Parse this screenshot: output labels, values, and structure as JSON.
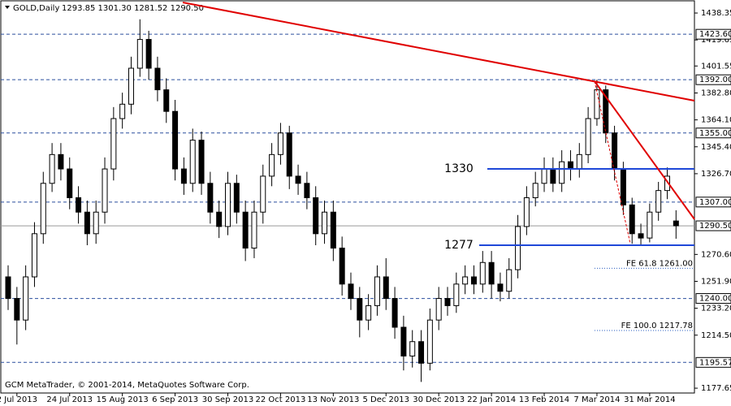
{
  "chart_data": {
    "type": "candlestick",
    "title": "GOLD,Daily",
    "header_values": "1293.85 1301.30 1281.52 1290.50",
    "footer": "GCM MetaTrader, © 2001-2014, MetaQuotes Software Corp.",
    "categories": [
      null,
      "2 Jul 2013",
      null,
      null,
      null,
      null,
      null,
      "24 Jul 2013",
      null,
      null,
      null,
      null,
      null,
      "15 Aug 2013",
      null,
      null,
      null,
      null,
      null,
      "6 Sep 2013",
      null,
      null,
      null,
      null,
      null,
      "30 Sep 2013",
      null,
      null,
      null,
      null,
      null,
      "22 Oct 2013",
      null,
      null,
      null,
      null,
      null,
      "13 Nov 2013",
      null,
      null,
      null,
      null,
      null,
      "5 Dec 2013",
      null,
      null,
      null,
      null,
      null,
      "30 Dec 2013",
      null,
      null,
      null,
      null,
      null,
      "22 Jan 2014",
      null,
      null,
      null,
      null,
      null,
      "13 Feb 2014",
      null,
      null,
      null,
      null,
      null,
      "7 Mar 2014",
      null,
      null,
      null,
      null,
      null,
      "31 Mar 2014",
      null,
      null,
      null
    ],
    "open": [
      1255,
      1240,
      1225,
      1255,
      1285,
      1320,
      1340,
      1330,
      1310,
      1300,
      1285,
      1300,
      1330,
      1365,
      1375,
      1400,
      1420,
      1400,
      1385,
      1370,
      1330,
      1320,
      1350,
      1320,
      1300,
      1290,
      1320,
      1300,
      1275,
      1300,
      1325,
      1340,
      1355,
      1325,
      1320,
      1310,
      1285,
      1300,
      1275,
      1250,
      1240,
      1225,
      1235,
      1255,
      1240,
      1220,
      1200,
      1210,
      1195,
      1225,
      1240,
      1235,
      1250,
      1255,
      1250,
      1265,
      1250,
      1245,
      1260,
      1290,
      1310,
      1320,
      1330,
      1320,
      1335,
      1330,
      1340,
      1365,
      1385,
      1355,
      1330,
      1305,
      1285,
      1282,
      1300,
      1315,
      1293.85
    ],
    "high": [
      1263,
      1248,
      1263,
      1293,
      1328,
      1348,
      1348,
      1338,
      1318,
      1308,
      1308,
      1338,
      1373,
      1383,
      1408,
      1434,
      1426,
      1408,
      1393,
      1378,
      1338,
      1358,
      1356,
      1328,
      1308,
      1328,
      1326,
      1308,
      1308,
      1333,
      1348,
      1362,
      1360,
      1333,
      1328,
      1318,
      1308,
      1308,
      1283,
      1258,
      1248,
      1243,
      1263,
      1268,
      1248,
      1228,
      1218,
      1218,
      1233,
      1248,
      1248,
      1258,
      1263,
      1263,
      1273,
      1273,
      1258,
      1268,
      1298,
      1318,
      1328,
      1338,
      1338,
      1343,
      1343,
      1348,
      1373,
      1392,
      1388,
      1360,
      1335,
      1310,
      1292,
      1306,
      1321,
      1331,
      1301.3
    ],
    "low": [
      1232,
      1208,
      1218,
      1248,
      1278,
      1314,
      1322,
      1302,
      1292,
      1277,
      1278,
      1292,
      1322,
      1358,
      1368,
      1394,
      1392,
      1377,
      1362,
      1322,
      1312,
      1314,
      1312,
      1292,
      1282,
      1284,
      1292,
      1266,
      1268,
      1292,
      1318,
      1333,
      1316,
      1312,
      1302,
      1277,
      1278,
      1266,
      1242,
      1232,
      1213,
      1218,
      1228,
      1232,
      1212,
      1190,
      1192,
      1182,
      1190,
      1218,
      1228,
      1230,
      1243,
      1243,
      1244,
      1240,
      1238,
      1240,
      1254,
      1284,
      1304,
      1314,
      1314,
      1314,
      1322,
      1324,
      1334,
      1360,
      1348,
      1322,
      1298,
      1278,
      1277,
      1279,
      1294,
      1309,
      1281.52
    ],
    "close": [
      1240,
      1225,
      1255,
      1285,
      1320,
      1340,
      1330,
      1310,
      1300,
      1285,
      1300,
      1330,
      1365,
      1375,
      1400,
      1420,
      1400,
      1385,
      1370,
      1330,
      1320,
      1350,
      1320,
      1300,
      1290,
      1320,
      1300,
      1275,
      1300,
      1325,
      1340,
      1355,
      1325,
      1320,
      1310,
      1285,
      1300,
      1275,
      1250,
      1240,
      1225,
      1235,
      1255,
      1240,
      1220,
      1200,
      1210,
      1195,
      1225,
      1240,
      1235,
      1250,
      1255,
      1250,
      1265,
      1250,
      1245,
      1260,
      1290,
      1310,
      1320,
      1330,
      1320,
      1335,
      1330,
      1340,
      1365,
      1385,
      1355,
      1330,
      1305,
      1285,
      1282,
      1300,
      1315,
      1325,
      1290.5
    ],
    "ylim": [
      1174.3,
      1447.4
    ],
    "yticks": [
      {
        "value": 1438.35,
        "label": "1438.35"
      },
      {
        "value": 1419.65,
        "label": "1419.65"
      },
      {
        "value": 1401.55,
        "label": "1401.55"
      },
      {
        "value": 1382.8,
        "label": "1382.80"
      },
      {
        "value": 1364.1,
        "label": "1364.10"
      },
      {
        "value": 1345.4,
        "label": "1345.40"
      },
      {
        "value": 1326.7,
        "label": "1326.70"
      },
      {
        "value": 1270.6,
        "label": "1270.60"
      },
      {
        "value": 1251.9,
        "label": "1251.90"
      },
      {
        "value": 1233.2,
        "label": "1233.20"
      },
      {
        "value": 1214.5,
        "label": "1214.50"
      },
      {
        "value": 1177.65,
        "label": "1177.65"
      }
    ],
    "levels": [
      {
        "value": 1423.6,
        "label": "1423.60"
      },
      {
        "value": 1392,
        "label": "1392.00"
      },
      {
        "value": 1355,
        "label": "1355.00"
      },
      {
        "value": 1307,
        "label": "1307.00"
      },
      {
        "value": 1240,
        "label": "1240.00"
      },
      {
        "value": 1195.57,
        "label": "1195.57"
      }
    ],
    "current_price": {
      "value": 1290.5,
      "label": "1290.50"
    },
    "support_resistance": [
      1330,
      1277
    ],
    "fibonacci": [
      {
        "value": 1261,
        "label": "FE 61.8 1261.00"
      },
      {
        "value": 1217.78,
        "label": "FE 100.0 1217.78"
      }
    ],
    "colors": {
      "level": "#2b4f9e",
      "current": "#9a9a9a",
      "sr": "#1f48d8",
      "sr_text": "#800080",
      "trend": "#e00000",
      "fib": "#2b5fc0"
    }
  }
}
